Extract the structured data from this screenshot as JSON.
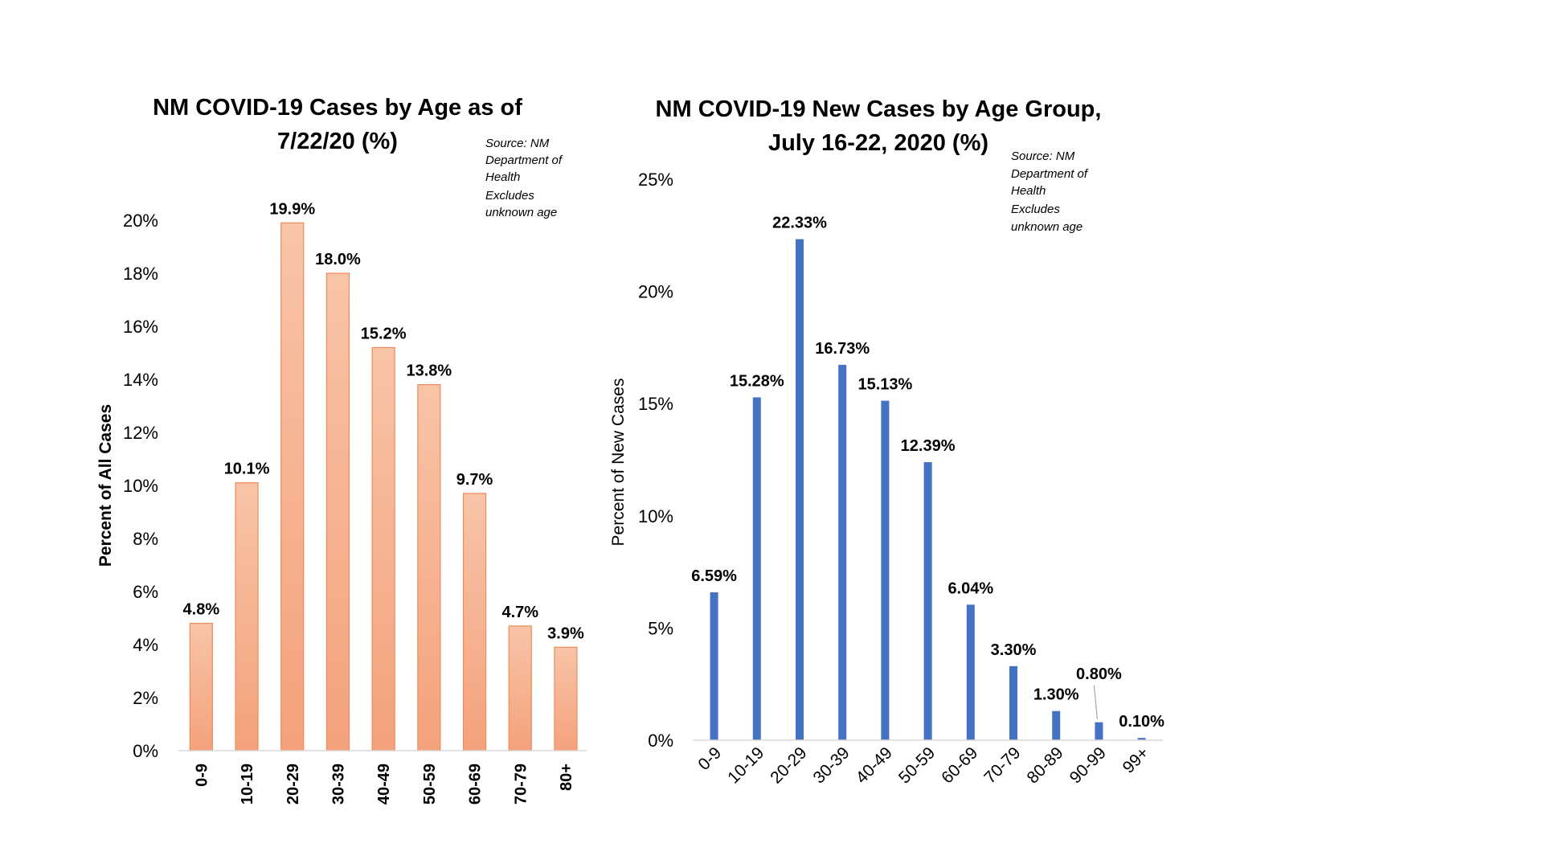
{
  "chart_data": [
    {
      "type": "bar",
      "title_lines": [
        "NM COVID-19 Cases by Age as of",
        "7/22/20 (%)"
      ],
      "source_note_lines": [
        "Source: NM",
        "Department of",
        "Health",
        "Excludes",
        "unknown age"
      ],
      "ylabel": "Percent of All Cases",
      "xlabel": "",
      "categories": [
        "0-9",
        "10-19",
        "20-29",
        "30-39",
        "40-49",
        "50-59",
        "60-69",
        "70-79",
        "80+"
      ],
      "values": [
        4.8,
        10.1,
        19.9,
        18.0,
        15.2,
        13.8,
        9.7,
        4.7,
        3.9
      ],
      "data_labels": [
        "4.8%",
        "10.1%",
        "19.9%",
        "18.0%",
        "15.2%",
        "13.8%",
        "9.7%",
        "4.7%",
        "3.9%"
      ],
      "ylim": [
        0,
        20
      ],
      "y_ticks": [
        0,
        2,
        4,
        6,
        8,
        10,
        12,
        14,
        16,
        18,
        20
      ],
      "y_tick_labels": [
        "0%",
        "2%",
        "4%",
        "6%",
        "8%",
        "10%",
        "12%",
        "14%",
        "16%",
        "18%",
        "20%"
      ],
      "grid": false,
      "legend": "none",
      "colors": {
        "bar_top": "#f8c4a8",
        "bar_bottom": "#f4a27c",
        "bar_edge": "#ed8b5a"
      }
    },
    {
      "type": "bar",
      "title_lines": [
        "NM COVID-19 New Cases by Age Group,",
        "July 16-22, 2020 (%)"
      ],
      "source_note_lines": [
        "Source: NM",
        "Department of",
        "Health",
        "Excludes",
        "unknown age"
      ],
      "ylabel": "Percent of New Cases",
      "xlabel": "",
      "categories": [
        "0-9",
        "10-19",
        "20-29",
        "30-39",
        "40-49",
        "50-59",
        "60-69",
        "70-79",
        "80-89",
        "90-99",
        "99+"
      ],
      "values": [
        6.59,
        15.28,
        22.33,
        16.73,
        15.13,
        12.39,
        6.04,
        3.3,
        1.3,
        0.8,
        0.1
      ],
      "data_labels": [
        "6.59%",
        "15.28%",
        "22.33%",
        "16.73%",
        "15.13%",
        "12.39%",
        "6.04%",
        "3.30%",
        "1.30%",
        "0.80%",
        "0.10%"
      ],
      "ylim": [
        0,
        25
      ],
      "y_ticks": [
        0,
        5,
        10,
        15,
        20,
        25
      ],
      "y_tick_labels": [
        "0%",
        "5%",
        "10%",
        "15%",
        "20%",
        "25%"
      ],
      "grid": false,
      "legend": "none",
      "colors": {
        "bar": "#4472c4",
        "leader_line": "#a6a6a6"
      }
    }
  ]
}
